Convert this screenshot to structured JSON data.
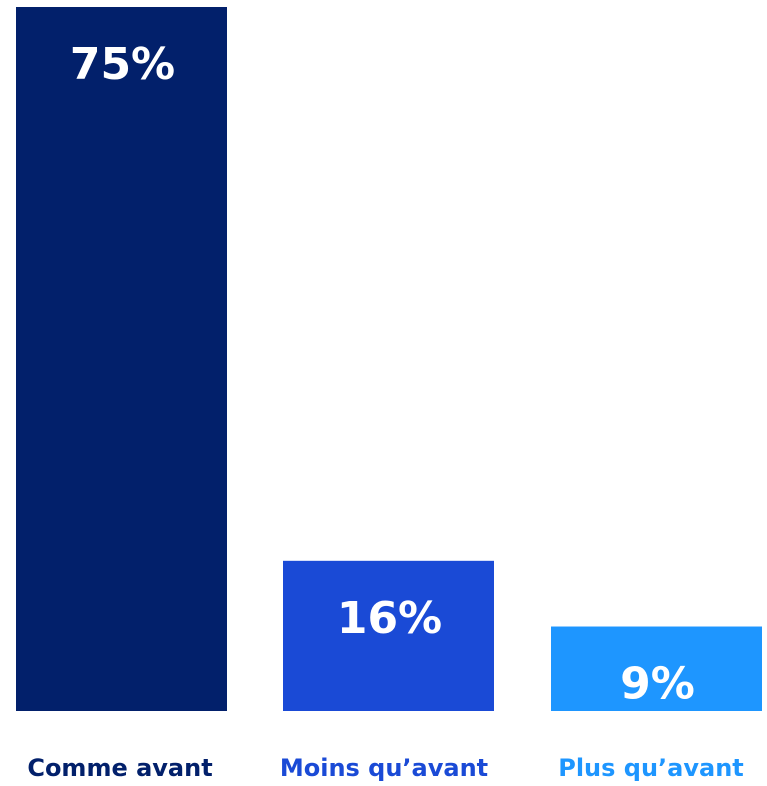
{
  "chart_data": {
    "type": "bar",
    "categories": [
      "Comme avant",
      "Moins qu’avant",
      "Plus qu’avant"
    ],
    "values": [
      75,
      16,
      9
    ],
    "value_labels": [
      "75%",
      "16%",
      "9%"
    ],
    "unit": "%",
    "ylim": [
      0,
      75
    ],
    "colors": [
      "#02206b",
      "#1a4ad6",
      "#1e96ff"
    ],
    "label_colors": [
      "#02206b",
      "#1a4ad6",
      "#1e96ff"
    ],
    "title": "",
    "xlabel": "",
    "ylabel": "",
    "grid": false,
    "legend": "none"
  }
}
